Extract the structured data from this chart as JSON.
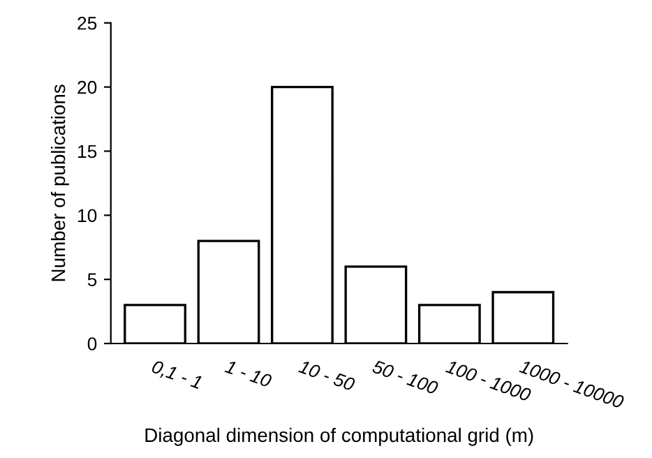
{
  "chart_data": {
    "type": "bar",
    "categories": [
      "0,1 - 1",
      "1 - 10",
      "10 - 50",
      "50 - 100",
      "100 - 1000",
      "1000 - 10000"
    ],
    "values": [
      3,
      8,
      20,
      6,
      3,
      4
    ],
    "color": "#ffffff",
    "xlabel": "Diagonal dimension of computational grid (m)",
    "ylabel": "Number of publications",
    "ylim": [
      0,
      25
    ],
    "yticks": [
      0,
      5,
      10,
      15,
      20,
      25
    ],
    "grid": false
  }
}
